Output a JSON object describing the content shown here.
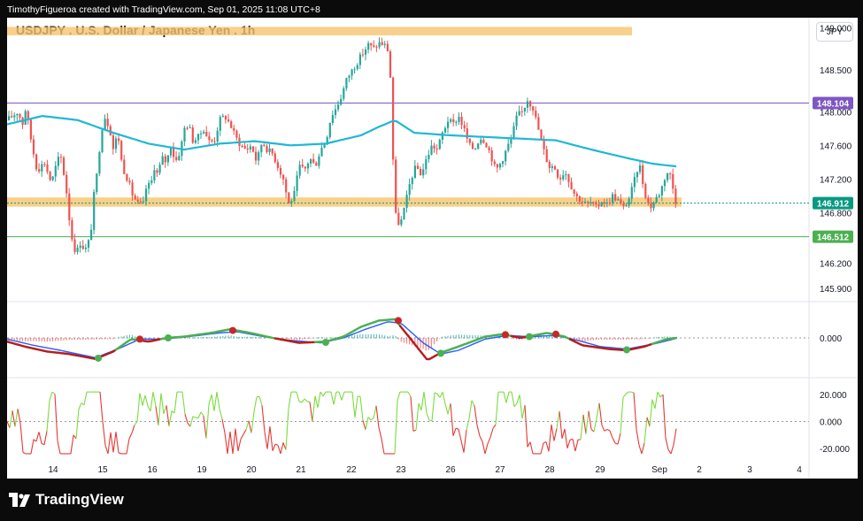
{
  "header": {
    "caption": "TimothyFigueroa created with TradingView.com, Sep 01, 2025 11:08 UTC+8",
    "symbol_title": "USDJPY . U.S. Dollar / Japanese Yen . 1h",
    "currency_badge": "JPY"
  },
  "brand": {
    "name": "TradingView"
  },
  "colors": {
    "bull": "#26a69a",
    "bear": "#ef5350",
    "zone": "#f7c46c",
    "ma": "#1fb8d4",
    "line_purple": "#7e57c2",
    "line_green": "#4caf50",
    "current_price_badge": "#089981"
  },
  "chart_data": [
    {
      "type": "candlestick",
      "title": "USDJPY . U.S. Dollar / Japanese Yen . 1h",
      "y_ticks": [
        "149.000",
        "148.500",
        "148.000",
        "147.600",
        "147.200",
        "146.800",
        "146.200",
        "145.900"
      ],
      "ylim": [
        145.75,
        149.12
      ],
      "x_ticks": [
        "14",
        "15",
        "16",
        "19",
        "20",
        "21",
        "22",
        "23",
        "26",
        "27",
        "28",
        "29",
        "Sep",
        "2",
        "3",
        "4"
      ],
      "price_path": [
        [
          0,
          147.9
        ],
        [
          6,
          147.95
        ],
        [
          12,
          148.0
        ],
        [
          18,
          147.85
        ],
        [
          21,
          148.05
        ],
        [
          28,
          147.6
        ],
        [
          34,
          147.3
        ],
        [
          42,
          147.4
        ],
        [
          50,
          147.15
        ],
        [
          55,
          147.35
        ],
        [
          60,
          147.5
        ],
        [
          66,
          147.15
        ],
        [
          72,
          146.55
        ],
        [
          78,
          146.3
        ],
        [
          82,
          146.45
        ],
        [
          88,
          146.35
        ],
        [
          94,
          146.5
        ],
        [
          98,
          147.0
        ],
        [
          102,
          147.3
        ],
        [
          106,
          147.75
        ],
        [
          110,
          147.95
        ],
        [
          116,
          147.8
        ],
        [
          120,
          147.55
        ],
        [
          125,
          147.75
        ],
        [
          130,
          147.35
        ],
        [
          136,
          147.2
        ],
        [
          142,
          147.0
        ],
        [
          148,
          146.9
        ],
        [
          154,
          146.9
        ],
        [
          158,
          147.15
        ],
        [
          162,
          147.1
        ],
        [
          166,
          147.35
        ],
        [
          170,
          147.25
        ],
        [
          175,
          147.45
        ],
        [
          180,
          147.4
        ],
        [
          185,
          147.6
        ],
        [
          190,
          147.4
        ],
        [
          196,
          147.55
        ],
        [
          200,
          147.8
        ],
        [
          205,
          147.85
        ],
        [
          210,
          147.65
        ],
        [
          216,
          147.7
        ],
        [
          222,
          147.8
        ],
        [
          228,
          147.65
        ],
        [
          234,
          147.65
        ],
        [
          240,
          147.9
        ],
        [
          246,
          147.95
        ],
        [
          252,
          147.85
        ],
        [
          258,
          147.7
        ],
        [
          264,
          147.6
        ],
        [
          270,
          147.55
        ],
        [
          276,
          147.6
        ],
        [
          282,
          147.4
        ],
        [
          288,
          147.65
        ],
        [
          294,
          147.55
        ],
        [
          300,
          147.5
        ],
        [
          306,
          147.35
        ],
        [
          312,
          147.2
        ],
        [
          318,
          146.9
        ],
        [
          324,
          147.0
        ],
        [
          330,
          147.35
        ],
        [
          336,
          147.3
        ],
        [
          342,
          147.45
        ],
        [
          348,
          147.35
        ],
        [
          354,
          147.55
        ],
        [
          360,
          147.65
        ],
        [
          366,
          147.95
        ],
        [
          372,
          148.05
        ],
        [
          378,
          148.2
        ],
        [
          384,
          148.4
        ],
        [
          390,
          148.5
        ],
        [
          396,
          148.6
        ],
        [
          402,
          148.7
        ],
        [
          408,
          148.8
        ],
        [
          414,
          148.75
        ],
        [
          420,
          148.82
        ],
        [
          426,
          148.8
        ],
        [
          432,
          148.7
        ],
        [
          438,
          146.8
        ],
        [
          441,
          146.7
        ],
        [
          444,
          146.65
        ],
        [
          450,
          146.9
        ],
        [
          456,
          147.2
        ],
        [
          462,
          147.35
        ],
        [
          468,
          147.25
        ],
        [
          474,
          147.45
        ],
        [
          480,
          147.6
        ],
        [
          486,
          147.55
        ],
        [
          492,
          147.75
        ],
        [
          498,
          147.9
        ],
        [
          504,
          147.85
        ],
        [
          510,
          147.95
        ],
        [
          516,
          147.8
        ],
        [
          522,
          147.6
        ],
        [
          528,
          147.55
        ],
        [
          534,
          147.7
        ],
        [
          540,
          147.65
        ],
        [
          546,
          147.5
        ],
        [
          552,
          147.3
        ],
        [
          558,
          147.4
        ],
        [
          564,
          147.55
        ],
        [
          570,
          147.7
        ],
        [
          576,
          147.95
        ],
        [
          582,
          148.0
        ],
        [
          588,
          148.15
        ],
        [
          594,
          148.05
        ],
        [
          600,
          147.8
        ],
        [
          606,
          147.55
        ],
        [
          612,
          147.35
        ],
        [
          618,
          147.35
        ],
        [
          624,
          147.2
        ],
        [
          630,
          147.3
        ],
        [
          636,
          147.15
        ],
        [
          642,
          147.0
        ],
        [
          648,
          146.95
        ],
        [
          654,
          146.9
        ],
        [
          660,
          146.92
        ],
        [
          666,
          146.85
        ],
        [
          672,
          146.95
        ],
        [
          678,
          146.9
        ],
        [
          684,
          147.0
        ],
        [
          690,
          146.95
        ],
        [
          696,
          146.85
        ],
        [
          702,
          146.95
        ],
        [
          708,
          147.15
        ],
        [
          714,
          147.4
        ],
        [
          720,
          147.05
        ],
        [
          726,
          146.85
        ],
        [
          732,
          146.95
        ],
        [
          738,
          147.05
        ],
        [
          744,
          147.25
        ],
        [
          748,
          147.3
        ],
        [
          752,
          147.1
        ],
        [
          756,
          146.9
        ]
      ],
      "moving_average": [
        [
          0,
          147.85
        ],
        [
          40,
          147.95
        ],
        [
          80,
          147.9
        ],
        [
          120,
          147.75
        ],
        [
          160,
          147.62
        ],
        [
          200,
          147.55
        ],
        [
          240,
          147.62
        ],
        [
          280,
          147.65
        ],
        [
          320,
          147.6
        ],
        [
          360,
          147.62
        ],
        [
          400,
          147.72
        ],
        [
          420,
          147.82
        ],
        [
          438,
          147.9
        ],
        [
          460,
          147.75
        ],
        [
          500,
          147.72
        ],
        [
          540,
          147.7
        ],
        [
          580,
          147.68
        ],
        [
          620,
          147.66
        ],
        [
          660,
          147.55
        ],
        [
          700,
          147.45
        ],
        [
          730,
          147.38
        ],
        [
          756,
          147.35
        ]
      ],
      "horizontal_levels": [
        {
          "label": "148.104",
          "price": 148.104,
          "color": "#7e57c2"
        },
        {
          "label": "146.912",
          "price": 146.912,
          "color": "#089981"
        },
        {
          "label": "146.512",
          "price": 146.512,
          "color": "#4caf50"
        }
      ],
      "zones": [
        {
          "name": "resistance-zone",
          "low": 148.91,
          "high": 149.01
        },
        {
          "name": "support-zone",
          "low": 146.87,
          "high": 146.98
        }
      ]
    },
    {
      "type": "oscillator",
      "name": "momentum-oscillator",
      "y_ticks": [
        "0.000"
      ],
      "fast_line": [
        [
          0,
          -0.15
        ],
        [
          20,
          -0.35
        ],
        [
          45,
          -0.55
        ],
        [
          70,
          -0.65
        ],
        [
          100,
          -0.85
        ],
        [
          120,
          -0.55
        ],
        [
          140,
          -0.05
        ],
        [
          160,
          -0.15
        ],
        [
          180,
          0.0
        ],
        [
          200,
          0.05
        ],
        [
          230,
          0.2
        ],
        [
          252,
          0.35
        ],
        [
          275,
          0.2
        ],
        [
          300,
          0.0
        ],
        [
          330,
          -0.2
        ],
        [
          360,
          -0.15
        ],
        [
          380,
          0.05
        ],
        [
          400,
          0.45
        ],
        [
          420,
          0.7
        ],
        [
          438,
          0.75
        ],
        [
          455,
          0.0
        ],
        [
          475,
          -0.9
        ],
        [
          490,
          -0.6
        ],
        [
          510,
          -0.35
        ],
        [
          540,
          0.05
        ],
        [
          560,
          0.15
        ],
        [
          580,
          0.0
        ],
        [
          610,
          0.2
        ],
        [
          630,
          0.05
        ],
        [
          650,
          -0.3
        ],
        [
          680,
          -0.45
        ],
        [
          700,
          -0.5
        ],
        [
          720,
          -0.35
        ],
        [
          745,
          -0.05
        ],
        [
          756,
          0.0
        ]
      ],
      "slow_line": [
        [
          0,
          -0.05
        ],
        [
          30,
          -0.3
        ],
        [
          60,
          -0.5
        ],
        [
          100,
          -0.8
        ],
        [
          125,
          -0.45
        ],
        [
          150,
          -0.05
        ],
        [
          175,
          -0.05
        ],
        [
          200,
          0.03
        ],
        [
          240,
          0.2
        ],
        [
          260,
          0.25
        ],
        [
          290,
          0.05
        ],
        [
          320,
          -0.1
        ],
        [
          355,
          -0.2
        ],
        [
          380,
          -0.0
        ],
        [
          405,
          0.35
        ],
        [
          430,
          0.65
        ],
        [
          445,
          0.6
        ],
        [
          470,
          -0.2
        ],
        [
          490,
          -0.65
        ],
        [
          510,
          -0.5
        ],
        [
          540,
          -0.05
        ],
        [
          565,
          0.1
        ],
        [
          590,
          0.05
        ],
        [
          620,
          0.1
        ],
        [
          645,
          -0.1
        ],
        [
          670,
          -0.35
        ],
        [
          700,
          -0.45
        ],
        [
          730,
          -0.25
        ],
        [
          756,
          -0.02
        ]
      ],
      "cross_points": [
        {
          "x": 103,
          "value": -0.82,
          "kind": "bull"
        },
        {
          "x": 150,
          "value": -0.05,
          "kind": "bear"
        },
        {
          "x": 182,
          "value": 0.0,
          "kind": "bull"
        },
        {
          "x": 255,
          "value": 0.3,
          "kind": "bear"
        },
        {
          "x": 360,
          "value": -0.18,
          "kind": "bull"
        },
        {
          "x": 442,
          "value": 0.7,
          "kind": "bear"
        },
        {
          "x": 490,
          "value": -0.62,
          "kind": "bull"
        },
        {
          "x": 563,
          "value": 0.13,
          "kind": "bear"
        },
        {
          "x": 590,
          "value": 0.05,
          "kind": "bull"
        },
        {
          "x": 620,
          "value": 0.15,
          "kind": "bear"
        },
        {
          "x": 700,
          "value": -0.48,
          "kind": "bull"
        }
      ]
    },
    {
      "type": "line",
      "name": "oscillator-2",
      "y_ticks": [
        "20.000",
        "0.000",
        "-20.000"
      ],
      "ylim": [
        -28,
        28
      ],
      "series_seed": 17,
      "length": 756
    }
  ]
}
